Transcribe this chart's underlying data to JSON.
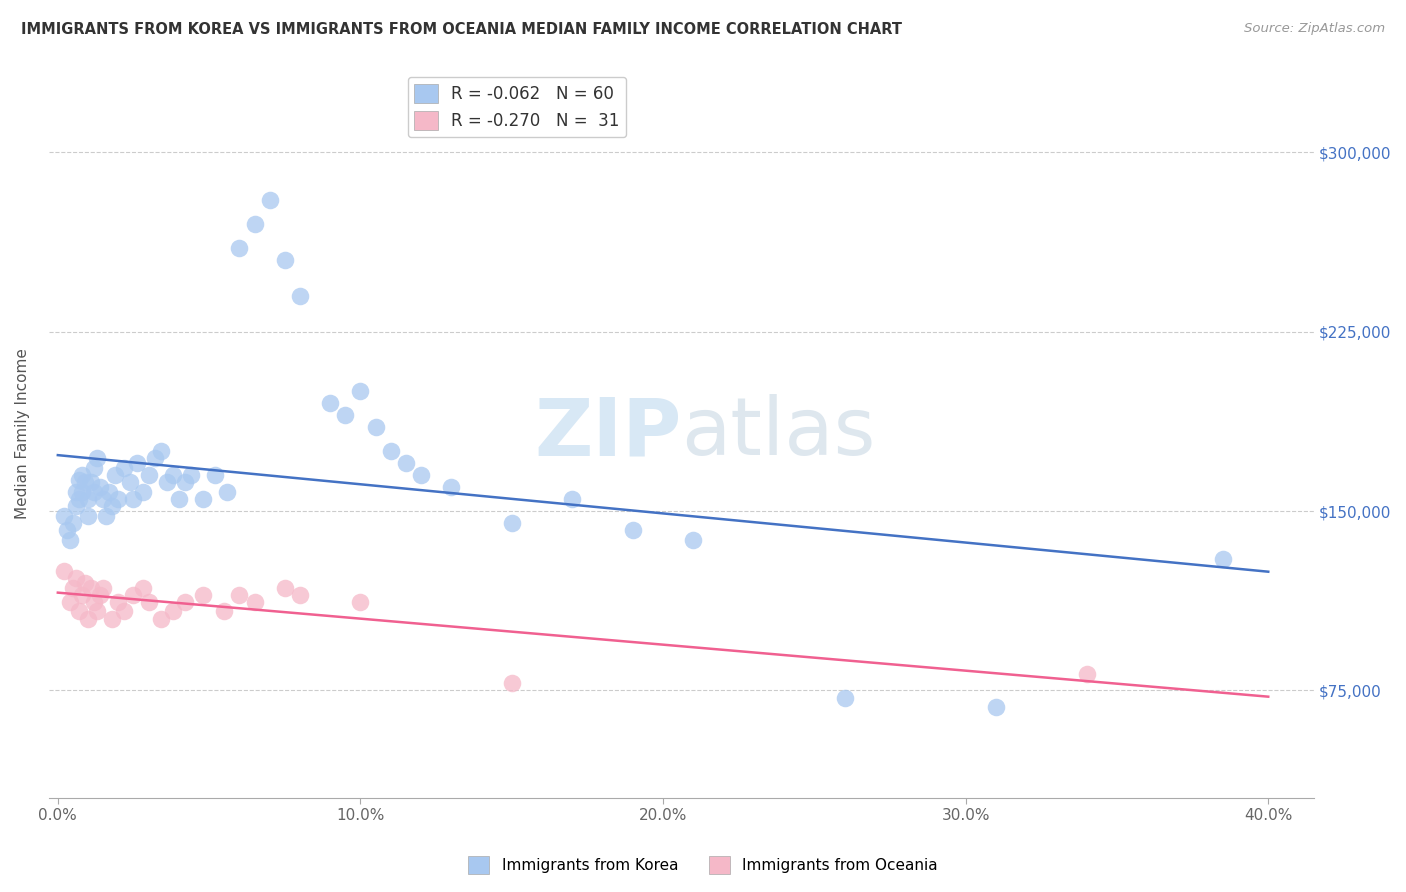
{
  "title": "IMMIGRANTS FROM KOREA VS IMMIGRANTS FROM OCEANIA MEDIAN FAMILY INCOME CORRELATION CHART",
  "source": "Source: ZipAtlas.com",
  "ylabel": "Median Family Income",
  "ytick_labels": [
    "$75,000",
    "$150,000",
    "$225,000",
    "$300,000"
  ],
  "ytick_vals": [
    75000,
    150000,
    225000,
    300000
  ],
  "ylim": [
    30000,
    335000
  ],
  "xlim": [
    -0.003,
    0.415
  ],
  "xtick_vals": [
    0.0,
    0.1,
    0.2,
    0.3,
    0.4
  ],
  "xtick_labels": [
    "0.0%",
    "10.0%",
    "20.0%",
    "30.0%",
    "40.0%"
  ],
  "korea_R": -0.062,
  "korea_N": 60,
  "oceania_R": -0.27,
  "oceania_N": 31,
  "korea_color": "#A8C8F0",
  "oceania_color": "#F5B8C8",
  "korea_line_color": "#4472C4",
  "oceania_line_color": "#F06090",
  "watermark_zip": "ZIP",
  "watermark_atlas": "atlas",
  "background_color": "#FFFFFF",
  "korea_x": [
    0.002,
    0.003,
    0.004,
    0.005,
    0.006,
    0.006,
    0.007,
    0.007,
    0.008,
    0.008,
    0.009,
    0.01,
    0.01,
    0.011,
    0.012,
    0.012,
    0.013,
    0.014,
    0.015,
    0.016,
    0.017,
    0.018,
    0.019,
    0.02,
    0.022,
    0.024,
    0.025,
    0.026,
    0.028,
    0.03,
    0.032,
    0.034,
    0.036,
    0.038,
    0.04,
    0.042,
    0.044,
    0.048,
    0.052,
    0.056,
    0.06,
    0.065,
    0.07,
    0.075,
    0.08,
    0.09,
    0.095,
    0.1,
    0.105,
    0.11,
    0.115,
    0.12,
    0.13,
    0.15,
    0.17,
    0.19,
    0.21,
    0.26,
    0.31,
    0.385
  ],
  "korea_y": [
    148000,
    142000,
    138000,
    145000,
    152000,
    158000,
    163000,
    155000,
    165000,
    158000,
    162000,
    155000,
    148000,
    162000,
    158000,
    168000,
    172000,
    160000,
    155000,
    148000,
    158000,
    152000,
    165000,
    155000,
    168000,
    162000,
    155000,
    170000,
    158000,
    165000,
    172000,
    175000,
    162000,
    165000,
    155000,
    162000,
    165000,
    155000,
    165000,
    158000,
    260000,
    270000,
    280000,
    255000,
    240000,
    195000,
    190000,
    200000,
    185000,
    175000,
    170000,
    165000,
    160000,
    145000,
    155000,
    142000,
    138000,
    72000,
    68000,
    130000
  ],
  "oceania_x": [
    0.002,
    0.004,
    0.005,
    0.006,
    0.007,
    0.008,
    0.009,
    0.01,
    0.011,
    0.012,
    0.013,
    0.014,
    0.015,
    0.018,
    0.02,
    0.022,
    0.025,
    0.028,
    0.03,
    0.034,
    0.038,
    0.042,
    0.048,
    0.055,
    0.06,
    0.065,
    0.075,
    0.08,
    0.1,
    0.15,
    0.34
  ],
  "oceania_y": [
    125000,
    112000,
    118000,
    122000,
    108000,
    115000,
    120000,
    105000,
    118000,
    112000,
    108000,
    115000,
    118000,
    105000,
    112000,
    108000,
    115000,
    118000,
    112000,
    105000,
    108000,
    112000,
    115000,
    108000,
    115000,
    112000,
    118000,
    115000,
    112000,
    78000,
    82000
  ]
}
